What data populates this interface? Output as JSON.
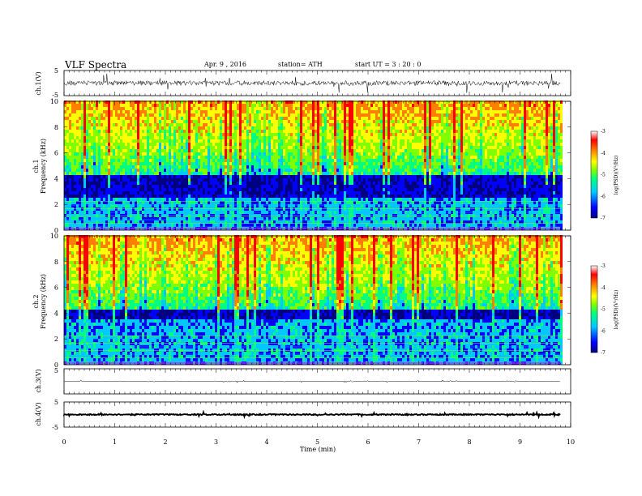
{
  "header": {
    "title": "VLF  Spectra",
    "date": "Apr. 9  , 2016",
    "station": "station= ATH",
    "start": "start  UT  =   3  : 20 : 0"
  },
  "chart_data": [
    {
      "type": "line",
      "name": "ch1-waveform",
      "ylabel": "ch.1(V)",
      "ylim": [
        -5,
        5
      ],
      "yticks": [
        "5",
        "-5"
      ],
      "mean_level": 0,
      "xlim": [
        0,
        10
      ]
    },
    {
      "type": "heatmap",
      "name": "ch1-spectrogram",
      "ylabel": "ch.1\nFrequency  (kHz)",
      "ylabel_lines": [
        "ch.1",
        "Frequency  (kHz)"
      ],
      "ylim": [
        0,
        10
      ],
      "yticks": [
        "0",
        "2",
        "4",
        "6",
        "8",
        "10"
      ],
      "xlim": [
        0,
        10
      ],
      "data_end_min": 9.8,
      "colorbar": {
        "label": "log(PSD)(V²/Hz)",
        "range": [
          -7,
          -3
        ],
        "ticks": [
          "-3",
          "-4",
          "-5",
          "-6",
          "-7"
        ],
        "colors": [
          "#000080",
          "#0000ff",
          "#00c8ff",
          "#00ff80",
          "#80ff00",
          "#ffff00",
          "#ff8000",
          "#ff0000",
          "#ffffff"
        ]
      }
    },
    {
      "type": "heatmap",
      "name": "ch2-spectrogram",
      "ylabel": "ch.2\nFrequency  (kHz)",
      "ylabel_lines": [
        "ch.2",
        "Frequency  (kHz)"
      ],
      "ylim": [
        0,
        10
      ],
      "yticks": [
        "0",
        "2",
        "4",
        "6",
        "8",
        "10"
      ],
      "xlim": [
        0,
        10
      ],
      "data_end_min": 9.8,
      "colorbar": {
        "label": "log(PSD)(V²/Hz)",
        "range": [
          -7,
          -3
        ],
        "ticks": [
          "-3",
          "-4",
          "-5",
          "-6",
          "-7"
        ],
        "colors": [
          "#000080",
          "#0000ff",
          "#00c8ff",
          "#00ff80",
          "#80ff00",
          "#ffff00",
          "#ff8000",
          "#ff0000",
          "#ffffff"
        ]
      }
    },
    {
      "type": "line",
      "name": "ch3-waveform",
      "ylabel": "ch.3(V)",
      "ylim": [
        -5,
        5
      ],
      "yticks": [
        "5"
      ],
      "mean_level": 0,
      "xlim": [
        0,
        10
      ]
    },
    {
      "type": "line",
      "name": "ch4-waveform",
      "ylabel": "ch.4(V)",
      "ylim": [
        -5,
        5
      ],
      "yticks": [
        "5",
        "-5"
      ],
      "mean_level": 0,
      "xlim": [
        0,
        10
      ]
    }
  ],
  "xaxis": {
    "label": "Time  (min)",
    "ticks": [
      "0",
      "1",
      "2",
      "3",
      "4",
      "5",
      "6",
      "7",
      "8",
      "9",
      "10"
    ],
    "range": [
      0,
      10
    ]
  }
}
